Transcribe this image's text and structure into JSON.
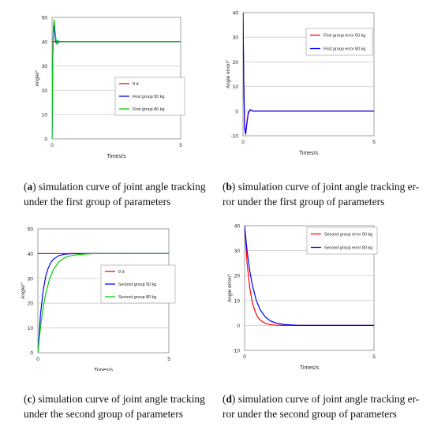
{
  "chart_data": [
    {
      "type": "line",
      "panel": "a",
      "ylabel": "Angle/°",
      "xlabel": "Times/s",
      "xlim": [
        0,
        5
      ],
      "ylim": [
        0,
        50
      ],
      "x_ticks": [
        "0",
        "5"
      ],
      "y_ticks": [
        "0",
        "10",
        "20",
        "30",
        "40",
        "50"
      ],
      "grid": true,
      "legend_position": "center-right",
      "series": [
        {
          "name": "θ d",
          "color": "#ff0000",
          "x": [
            0,
            5
          ],
          "y": [
            40,
            40
          ]
        },
        {
          "name": "First group 50 kg",
          "color": "#0000ff",
          "x": [
            0,
            0.02,
            0.05,
            0.08,
            0.1,
            0.13,
            0.16,
            0.2,
            0.25,
            0.3,
            5
          ],
          "y": [
            0,
            30,
            44,
            47,
            44,
            41,
            39.5,
            40.2,
            39.8,
            40,
            40
          ]
        },
        {
          "name": "First group 80 kg",
          "color": "#00cc00",
          "x": [
            0,
            0.02,
            0.05,
            0.08,
            0.11,
            0.15,
            0.2,
            0.25,
            0.3,
            0.35,
            5
          ],
          "y": [
            0,
            28,
            46,
            49,
            45,
            41,
            39,
            40.4,
            39.9,
            40,
            40
          ]
        }
      ]
    },
    {
      "type": "line",
      "panel": "b",
      "ylabel": "Angle error/°",
      "xlabel": "Times/s",
      "xlim": [
        0,
        5
      ],
      "ylim": [
        -10,
        40
      ],
      "x_ticks": [
        "0",
        "5"
      ],
      "y_ticks": [
        "-10",
        "0",
        "10",
        "20",
        "30",
        "40"
      ],
      "grid": true,
      "legend_position": "top-right",
      "series": [
        {
          "name": "First group error 50 kg",
          "color": "#ff0000",
          "x": [
            0,
            0.03,
            0.06,
            0.1,
            0.14,
            0.2,
            0.27,
            0.35,
            5
          ],
          "y": [
            40,
            10,
            -6,
            -9,
            -5,
            -1,
            0.5,
            0,
            0
          ]
        },
        {
          "name": "First group error 80 kg",
          "color": "#0000ff",
          "x": [
            0,
            0.03,
            0.06,
            0.1,
            0.15,
            0.2,
            0.28,
            0.36,
            5
          ],
          "y": [
            40,
            12,
            -7,
            -9.5,
            -5,
            -0.5,
            0.6,
            0,
            0
          ]
        }
      ]
    },
    {
      "type": "line",
      "panel": "c",
      "ylabel": "Angle/°",
      "xlabel": "Times/s",
      "xlim": [
        0,
        5
      ],
      "ylim": [
        0,
        50
      ],
      "x_ticks": [
        "0",
        "5"
      ],
      "y_ticks": [
        "0",
        "10",
        "20",
        "30",
        "40",
        "50"
      ],
      "grid": true,
      "legend_position": "center-right",
      "series": [
        {
          "name": "θ d",
          "color": "#ff0000",
          "x": [
            0,
            5
          ],
          "y": [
            40,
            40
          ]
        },
        {
          "name": "Second group 50 kg",
          "color": "#0000ff",
          "x": [
            0,
            0.1,
            0.2,
            0.3,
            0.4,
            0.5,
            0.6,
            0.8,
            1.0,
            1.2,
            1.5,
            5
          ],
          "y": [
            0,
            15.4,
            24.9,
            30.9,
            34.3,
            36.5,
            37.8,
            39.2,
            39.7,
            39.9,
            40,
            40
          ]
        },
        {
          "name": "Second group 80 kg",
          "color": "#00cc00",
          "x": [
            0,
            0.1,
            0.2,
            0.3,
            0.45,
            0.6,
            0.8,
            1.0,
            1.2,
            1.5,
            1.8,
            2.1,
            5
          ],
          "y": [
            0,
            10.4,
            18.1,
            23.8,
            29.9,
            33.7,
            36.6,
            38.2,
            39.0,
            39.6,
            39.8,
            40,
            40
          ]
        }
      ]
    },
    {
      "type": "line",
      "panel": "d",
      "ylabel": "Angle error/°",
      "xlabel": "Times/s",
      "xlim": [
        0,
        5
      ],
      "ylim": [
        -10,
        40
      ],
      "x_ticks": [
        "0",
        "5"
      ],
      "y_ticks": [
        "-10",
        "0",
        "10",
        "20",
        "30",
        "40"
      ],
      "grid": true,
      "legend_position": "top-right",
      "series": [
        {
          "name": "Second group error 50 kg",
          "color": "#ff0000",
          "x": [
            0,
            0.1,
            0.2,
            0.3,
            0.4,
            0.5,
            0.6,
            0.8,
            1.0,
            1.2,
            1.5,
            5
          ],
          "y": [
            40,
            24.6,
            15.1,
            9.1,
            5.7,
            3.5,
            2.2,
            0.8,
            0.3,
            0.1,
            0,
            0
          ]
        },
        {
          "name": "Second group error 80 kg",
          "color": "#0000ff",
          "x": [
            0,
            0.1,
            0.2,
            0.3,
            0.45,
            0.6,
            0.8,
            1.0,
            1.2,
            1.5,
            1.8,
            2.1,
            5
          ],
          "y": [
            40,
            29.6,
            21.9,
            16.2,
            10.1,
            6.3,
            3.4,
            1.8,
            1.0,
            0.4,
            0.2,
            0,
            0
          ]
        }
      ]
    }
  ],
  "captions": [
    {
      "letter": "a",
      "line1": "simulation curve of joint angle tracking",
      "line2": "under the first group of parameters"
    },
    {
      "letter": "b",
      "line1": "simulation curve of joint angle tracking er-",
      "line2": "ror under the first group of parameters"
    },
    {
      "letter": "c",
      "line1": "simulation curve of joint angle tracking",
      "line2": "under the second group of parameters"
    },
    {
      "letter": "d",
      "line1": "simulation curve of joint angle tracking er-",
      "line2": "ror under the second group of parameters"
    }
  ]
}
